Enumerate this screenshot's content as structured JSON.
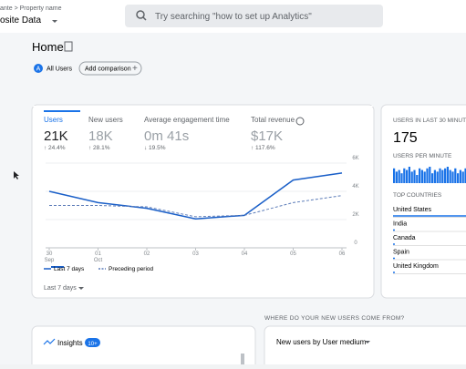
{
  "header": {
    "breadcrumb": "ante > Property name",
    "property": "osite Data",
    "search_placeholder": "Try searching \"how to set up Analytics\""
  },
  "page": {
    "title": "Home",
    "segment": "All Users",
    "segment_initial": "A",
    "add_comparison": "Add comparison"
  },
  "metrics": [
    {
      "label": "Users",
      "value": "21K",
      "change": "↑ 24.4%"
    },
    {
      "label": "New users",
      "value": "18K",
      "change": "↑ 28.1%"
    },
    {
      "label": "Average engagement time",
      "value": "0m 41s",
      "change": "↓ 19.5%"
    },
    {
      "label": "Total revenue",
      "value": "$17K",
      "change": "↑ 117.6%"
    }
  ],
  "chart": {
    "type": "line",
    "categories": [
      "30",
      "01",
      "02",
      "03",
      "04",
      "05",
      "06"
    ],
    "sublabels": [
      "Sep",
      "Oct",
      null,
      null,
      null,
      null,
      null
    ],
    "series": [
      {
        "name": "Last 7 days",
        "color": "#1a5fc8",
        "values": [
          4000,
          3200,
          2800,
          2050,
          2300,
          4800,
          5300
        ]
      },
      {
        "name": "Preceding period",
        "color": "#5b7bb8",
        "values": [
          3000,
          3000,
          2900,
          2200,
          2300,
          3200,
          3700
        ]
      }
    ],
    "ylim": [
      0,
      6000
    ],
    "yticks": [
      0,
      {
        "value": 2000,
        "label": "2K"
      },
      {
        "value": 4000,
        "label": "4K"
      },
      {
        "value": 6000,
        "label": "6K"
      }
    ],
    "range": "Last 7 days"
  },
  "realtime": {
    "title": "USERS IN LAST 30 MINUT",
    "value": "175",
    "per_minute_label": "USERS PER MINUTE",
    "per_minute": [
      9,
      7,
      8,
      6,
      9,
      8,
      10,
      7,
      8,
      5,
      9,
      8,
      7,
      9,
      10,
      6,
      8,
      7,
      9,
      8,
      9,
      10,
      8,
      7,
      9,
      6,
      8,
      7,
      9,
      8
    ],
    "top_countries_label": "TOP COUNTRIES",
    "countries": [
      "United States",
      "India",
      "Canada",
      "Spain",
      "United Kingdom"
    ]
  },
  "sources": {
    "title": "WHERE DO YOUR NEW USERS COME FROM?",
    "dropdown": "New users by User medium"
  },
  "insights": {
    "title": "Insights",
    "badge": "10+"
  }
}
